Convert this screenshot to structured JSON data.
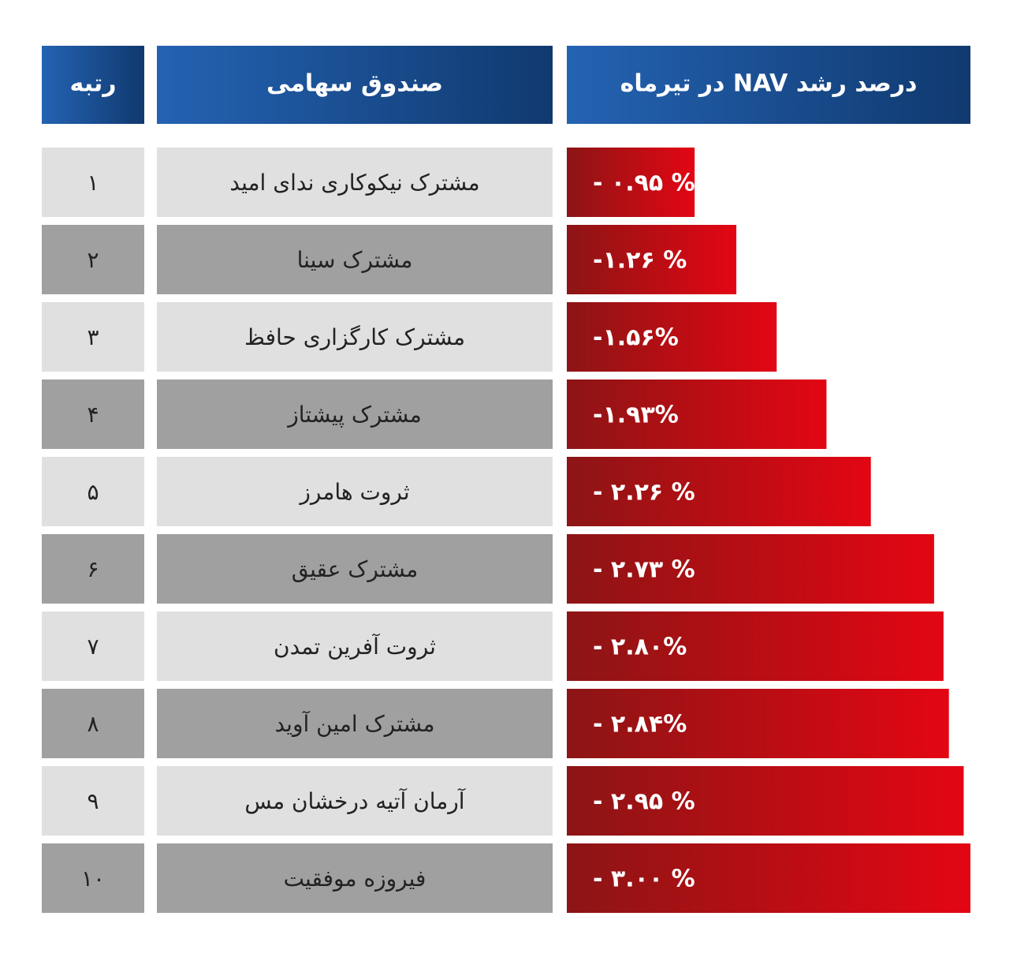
{
  "chart_data": {
    "type": "bar",
    "columns": [
      "رتبه",
      "صندوق سهامی",
      "درصد رشد NAV در تیرماه"
    ],
    "ranks": [
      "۱",
      "۲",
      "۳",
      "۴",
      "۵",
      "۶",
      "۷",
      "۸",
      "۹",
      "۱۰"
    ],
    "categories": [
      "مشترک نیکوکاری ندای امید",
      "مشترک سینا",
      "مشترک کارگزاری حافظ",
      "مشترک پیشتاز",
      "ثروت هامرز",
      "مشترک عقیق",
      "ثروت آفرین تمدن",
      "مشترک امین آوید",
      "آرمان آتیه درخشان مس",
      "فیروزه موفقیت"
    ],
    "values": [
      -0.95,
      -1.26,
      -1.56,
      -1.93,
      -2.26,
      -2.73,
      -2.8,
      -2.84,
      -2.95,
      -3.0
    ],
    "value_labels": [
      "- ۰.۹۵ %",
      "-۱.۲۶ %",
      "-۱.۵۶%",
      "-۱.۹۳%",
      "- ۲.۲۶ %",
      "- ۲.۷۳ %",
      "- ۲.۸۰%",
      "- ۲.۸۴%",
      "- ۲.۹۵ %",
      "- ۳.۰۰ %"
    ],
    "color": "#e30613"
  }
}
